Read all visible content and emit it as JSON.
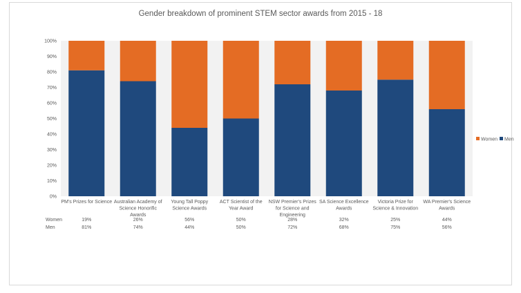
{
  "chart_data": {
    "type": "bar",
    "stacked": true,
    "title": "Gender breakdown of prominent STEM sector awards from 2015 - 18",
    "categories": [
      [
        "PM's Prizes for Science"
      ],
      [
        "Australian Academy of",
        "Science Honorific",
        "Awards"
      ],
      [
        "Young Tall Poppy",
        "Science Awards"
      ],
      [
        "ACT Scientist of the",
        "Year Award"
      ],
      [
        "NSW Premier's Prizes",
        "for Science and",
        "Engineering"
      ],
      [
        "SA Science Excellence",
        "Awards"
      ],
      [
        "Victoria Prize for",
        "Science & Innovation"
      ],
      [
        "WA Premier's Science",
        "Awards"
      ]
    ],
    "series": [
      {
        "name": "Men",
        "color": "#1f497d",
        "values": [
          81,
          74,
          44,
          50,
          72,
          68,
          75,
          56
        ],
        "labels": [
          "81%",
          "74%",
          "44%",
          "50%",
          "72%",
          "68%",
          "75%",
          "56%"
        ]
      },
      {
        "name": "Women",
        "color": "#e46c24",
        "values": [
          19,
          26,
          56,
          50,
          28,
          32,
          25,
          44
        ],
        "labels": [
          "19%",
          "26%",
          "56%",
          "50%",
          "28%",
          "32%",
          "25%",
          "44%"
        ]
      }
    ],
    "ylim": [
      0,
      100
    ],
    "yticks": [
      "0%",
      "10%",
      "20%",
      "30%",
      "40%",
      "50%",
      "60%",
      "70%",
      "80%",
      "90%",
      "100%"
    ],
    "legend": {
      "position": "right",
      "entries": [
        "Women",
        "Men"
      ]
    },
    "data_table": {
      "rows": [
        "Women",
        "Men"
      ]
    },
    "plot_background": "#f2f2f2",
    "grid": false
  }
}
